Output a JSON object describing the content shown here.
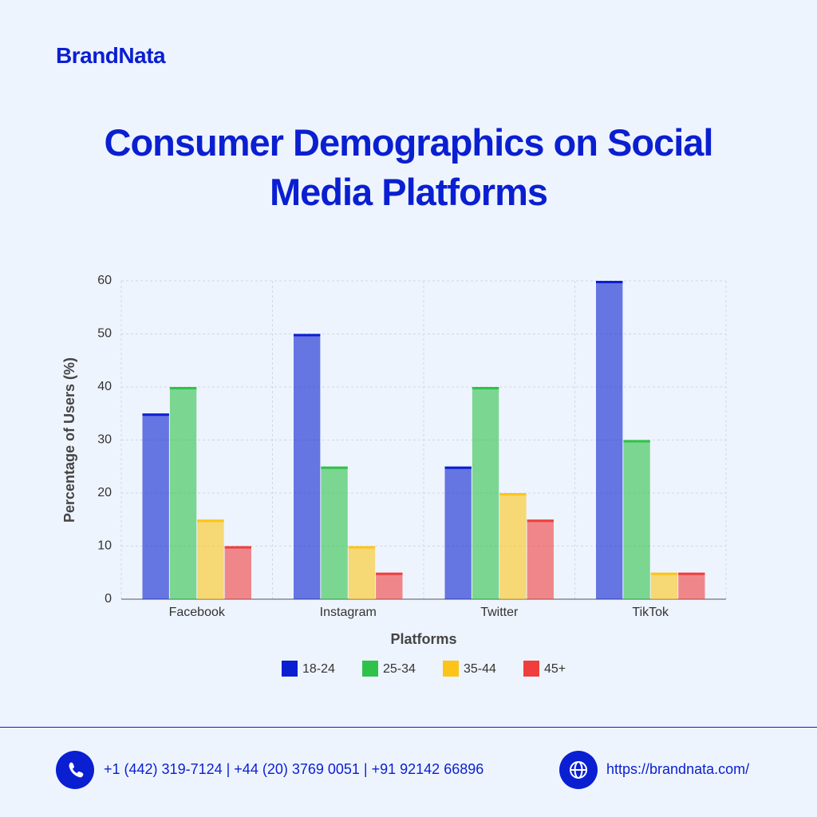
{
  "brand": "BrandNata",
  "chart_data": {
    "type": "bar",
    "title": "Consumer Demographics on Social Media Platforms",
    "x_label": "Platforms",
    "y_label": "Percentage of Users (%)",
    "categories": [
      "Facebook",
      "Instagram",
      "Twitter",
      "TikTok"
    ],
    "series": [
      {
        "name": "18-24",
        "color": "#0a1fd1",
        "values": [
          35,
          50,
          25,
          60
        ]
      },
      {
        "name": "25-34",
        "color": "#2ec24a",
        "values": [
          40,
          25,
          40,
          30
        ]
      },
      {
        "name": "35-44",
        "color": "#fcc419",
        "values": [
          15,
          10,
          20,
          5
        ]
      },
      {
        "name": "45+",
        "color": "#f03e3e",
        "values": [
          10,
          5,
          15,
          5
        ]
      }
    ],
    "ylim": [
      0,
      60
    ],
    "yticks": [
      0,
      10,
      20,
      30,
      40,
      50,
      60
    ],
    "grid": true,
    "legend": "bottom"
  },
  "footer": {
    "phones": "+1 (442) 319-7124 | +44 (20) 3769 0051 | +91 92142 66896",
    "website": "https://brandnata.com/"
  }
}
